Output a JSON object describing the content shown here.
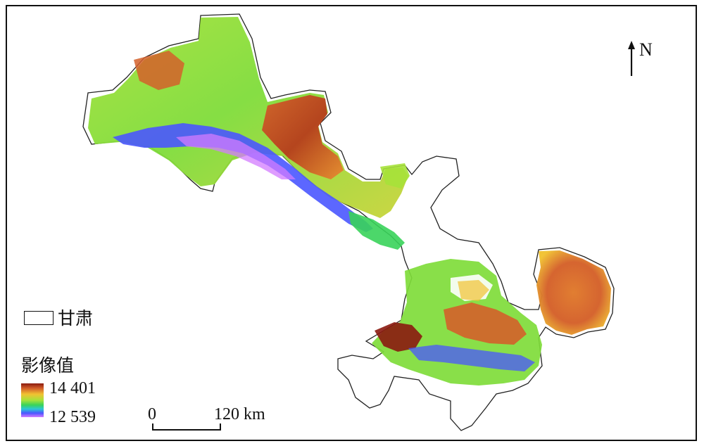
{
  "north_arrow": {
    "letter": "N",
    "icon": "north-arrow-icon"
  },
  "legend": {
    "boundary_label": "甘肃",
    "value_title": "影像值",
    "max_value": "14 401",
    "min_value": "12 539"
  },
  "scale_bar": {
    "zero_label": "0",
    "max_label": "120 km"
  },
  "colors": {
    "high": "#8b1a0f",
    "mid_high": "#f1c232",
    "mid": "#39d35a",
    "low": "#4a56ff",
    "lowest": "#d37bff",
    "boundary": "#222222"
  }
}
